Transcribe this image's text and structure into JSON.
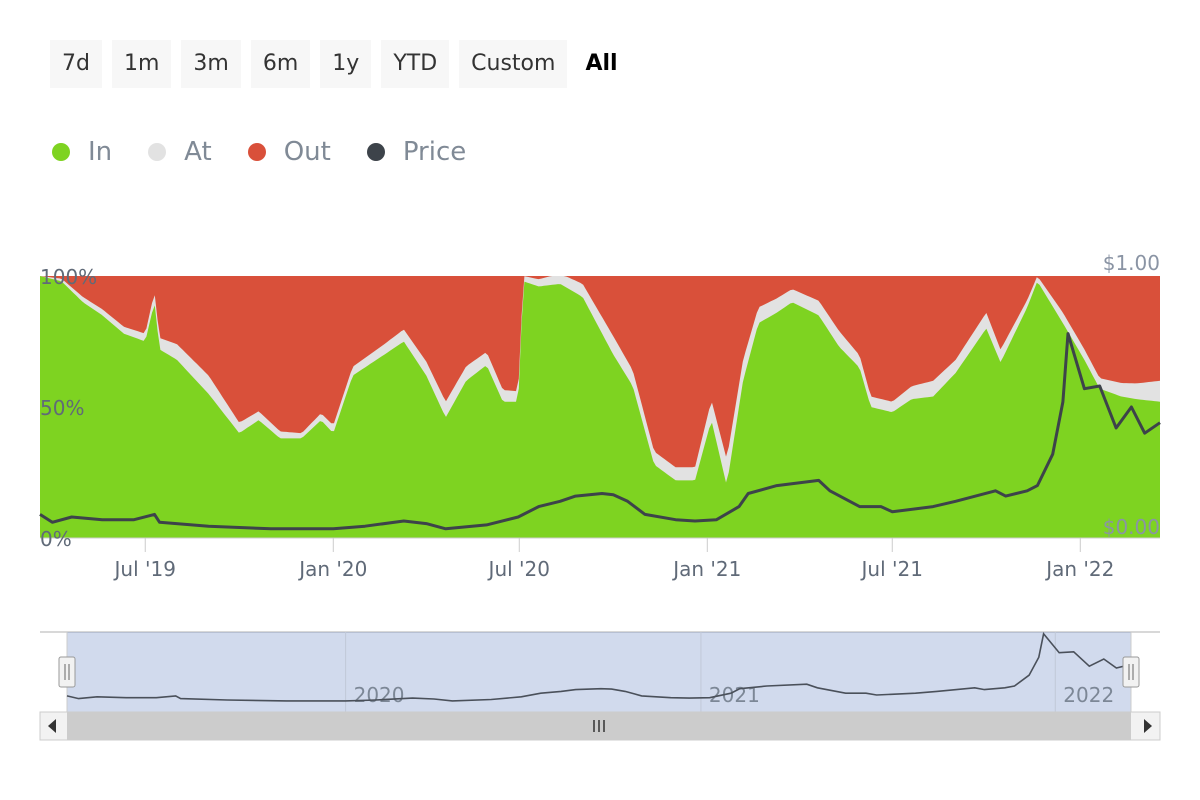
{
  "range_buttons": [
    {
      "label": "7d",
      "selected": false
    },
    {
      "label": "1m",
      "selected": false
    },
    {
      "label": "3m",
      "selected": false
    },
    {
      "label": "6m",
      "selected": false
    },
    {
      "label": "1y",
      "selected": false
    },
    {
      "label": "YTD",
      "selected": false
    },
    {
      "label": "Custom",
      "selected": false
    },
    {
      "label": "All",
      "selected": true
    }
  ],
  "legend": [
    {
      "name": "In",
      "color": "#7ed321"
    },
    {
      "name": "At",
      "color": "#e2e2e2"
    },
    {
      "name": "Out",
      "color": "#d9503a"
    },
    {
      "name": "Price",
      "color": "#3d434a"
    }
  ],
  "chart_data": {
    "type": "area",
    "stacked_percent": true,
    "x_start": "2019-03-20",
    "x_end": "2022-03-20",
    "x_ticks": [
      {
        "date": "2019-07-01",
        "label": "Jul '19"
      },
      {
        "date": "2020-01-01",
        "label": "Jan '20"
      },
      {
        "date": "2020-07-01",
        "label": "Jul '20"
      },
      {
        "date": "2021-01-01",
        "label": "Jan '21"
      },
      {
        "date": "2021-07-01",
        "label": "Jul '21"
      },
      {
        "date": "2022-01-01",
        "label": "Jan '22"
      }
    ],
    "y_left": {
      "ticks": [
        "0%",
        "50%",
        "100%"
      ],
      "range": [
        0,
        100
      ]
    },
    "y_right": {
      "ticks": [
        "$0.00",
        "$1.00"
      ],
      "range": [
        0,
        1
      ]
    },
    "series": [
      {
        "name": "In",
        "color": "#7ed321",
        "points": [
          [
            "2019-03-20",
            100
          ],
          [
            "2019-04-10",
            98
          ],
          [
            "2019-05-01",
            90
          ],
          [
            "2019-05-20",
            85
          ],
          [
            "2019-06-10",
            78
          ],
          [
            "2019-07-01",
            75
          ],
          [
            "2019-07-10",
            90
          ],
          [
            "2019-07-15",
            72
          ],
          [
            "2019-08-01",
            68
          ],
          [
            "2019-09-01",
            55
          ],
          [
            "2019-10-01",
            40
          ],
          [
            "2019-10-20",
            45
          ],
          [
            "2019-11-10",
            38
          ],
          [
            "2019-12-01",
            38
          ],
          [
            "2019-12-20",
            45
          ],
          [
            "2020-01-01",
            40
          ],
          [
            "2020-01-20",
            62
          ],
          [
            "2020-02-20",
            70
          ],
          [
            "2020-03-10",
            75
          ],
          [
            "2020-04-01",
            62
          ],
          [
            "2020-04-20",
            46
          ],
          [
            "2020-05-10",
            60
          ],
          [
            "2020-05-30",
            66
          ],
          [
            "2020-06-15",
            52
          ],
          [
            "2020-06-30",
            52
          ],
          [
            "2020-07-05",
            98
          ],
          [
            "2020-07-20",
            96
          ],
          [
            "2020-08-10",
            97
          ],
          [
            "2020-09-01",
            92
          ],
          [
            "2020-10-01",
            70
          ],
          [
            "2020-10-20",
            58
          ],
          [
            "2020-11-10",
            28
          ],
          [
            "2020-12-01",
            22
          ],
          [
            "2020-12-20",
            22
          ],
          [
            "2021-01-05",
            45
          ],
          [
            "2021-01-20",
            20
          ],
          [
            "2021-02-05",
            60
          ],
          [
            "2021-02-20",
            82
          ],
          [
            "2021-03-10",
            86
          ],
          [
            "2021-03-25",
            90
          ],
          [
            "2021-04-20",
            85
          ],
          [
            "2021-05-10",
            73
          ],
          [
            "2021-05-30",
            65
          ],
          [
            "2021-06-10",
            50
          ],
          [
            "2021-07-01",
            48
          ],
          [
            "2021-07-20",
            53
          ],
          [
            "2021-08-10",
            54
          ],
          [
            "2021-09-01",
            63
          ],
          [
            "2021-10-01",
            80
          ],
          [
            "2021-10-15",
            67
          ],
          [
            "2021-11-10",
            88
          ],
          [
            "2021-11-20",
            98
          ],
          [
            "2021-12-15",
            82
          ],
          [
            "2022-01-05",
            68
          ],
          [
            "2022-01-20",
            57
          ],
          [
            "2022-02-10",
            54
          ],
          [
            "2022-02-25",
            53
          ],
          [
            "2022-03-20",
            52
          ]
        ]
      },
      {
        "name": "At",
        "color": "#e2e2e2",
        "points": [
          [
            "2019-03-20",
            0
          ],
          [
            "2019-05-01",
            2
          ],
          [
            "2019-07-01",
            3
          ],
          [
            "2019-08-01",
            6
          ],
          [
            "2019-09-01",
            7
          ],
          [
            "2019-10-01",
            4
          ],
          [
            "2019-12-01",
            2
          ],
          [
            "2020-01-01",
            3
          ],
          [
            "2020-02-20",
            4
          ],
          [
            "2020-04-20",
            6
          ],
          [
            "2020-05-30",
            5
          ],
          [
            "2020-06-30",
            4
          ],
          [
            "2020-07-05",
            2
          ],
          [
            "2020-09-01",
            5
          ],
          [
            "2020-10-01",
            7
          ],
          [
            "2020-11-10",
            5
          ],
          [
            "2020-12-20",
            5
          ],
          [
            "2021-01-20",
            10
          ],
          [
            "2021-02-20",
            6
          ],
          [
            "2021-03-25",
            5
          ],
          [
            "2021-05-10",
            6
          ],
          [
            "2021-06-10",
            4
          ],
          [
            "2021-07-01",
            4
          ],
          [
            "2021-08-10",
            6
          ],
          [
            "2021-09-01",
            5
          ],
          [
            "2021-10-01",
            6
          ],
          [
            "2021-11-20",
            2
          ],
          [
            "2021-12-15",
            4
          ],
          [
            "2022-01-20",
            4
          ],
          [
            "2022-02-25",
            6
          ],
          [
            "2022-03-20",
            8
          ]
        ]
      },
      {
        "name": "Out",
        "color": "#d9503a",
        "stack_remainder": true
      },
      {
        "name": "Price",
        "color": "#3d434a",
        "axis": "right",
        "points": [
          [
            "2019-03-20",
            0.09
          ],
          [
            "2019-04-01",
            0.06
          ],
          [
            "2019-04-20",
            0.08
          ],
          [
            "2019-05-20",
            0.07
          ],
          [
            "2019-06-20",
            0.07
          ],
          [
            "2019-07-10",
            0.09
          ],
          [
            "2019-07-15",
            0.06
          ],
          [
            "2019-09-01",
            0.045
          ],
          [
            "2019-11-01",
            0.035
          ],
          [
            "2020-01-01",
            0.035
          ],
          [
            "2020-02-01",
            0.045
          ],
          [
            "2020-03-10",
            0.065
          ],
          [
            "2020-04-01",
            0.055
          ],
          [
            "2020-04-20",
            0.035
          ],
          [
            "2020-05-30",
            0.05
          ],
          [
            "2020-06-30",
            0.08
          ],
          [
            "2020-07-20",
            0.12
          ],
          [
            "2020-08-10",
            0.14
          ],
          [
            "2020-08-25",
            0.16
          ],
          [
            "2020-09-20",
            0.17
          ],
          [
            "2020-10-01",
            0.165
          ],
          [
            "2020-10-15",
            0.14
          ],
          [
            "2020-11-01",
            0.09
          ],
          [
            "2020-12-01",
            0.07
          ],
          [
            "2020-12-20",
            0.065
          ],
          [
            "2021-01-10",
            0.07
          ],
          [
            "2021-02-01",
            0.12
          ],
          [
            "2021-02-10",
            0.17
          ],
          [
            "2021-03-10",
            0.2
          ],
          [
            "2021-04-20",
            0.22
          ],
          [
            "2021-05-01",
            0.18
          ],
          [
            "2021-05-30",
            0.12
          ],
          [
            "2021-06-20",
            0.12
          ],
          [
            "2021-07-01",
            0.1
          ],
          [
            "2021-08-10",
            0.12
          ],
          [
            "2021-09-01",
            0.14
          ],
          [
            "2021-10-10",
            0.18
          ],
          [
            "2021-10-20",
            0.16
          ],
          [
            "2021-11-10",
            0.18
          ],
          [
            "2021-11-20",
            0.2
          ],
          [
            "2021-12-05",
            0.32
          ],
          [
            "2021-12-15",
            0.52
          ],
          [
            "2021-12-20",
            0.78
          ],
          [
            "2022-01-05",
            0.57
          ],
          [
            "2022-01-20",
            0.58
          ],
          [
            "2022-02-05",
            0.42
          ],
          [
            "2022-02-20",
            0.5
          ],
          [
            "2022-03-05",
            0.4
          ],
          [
            "2022-03-20",
            0.44
          ]
        ]
      }
    ],
    "navigator": {
      "labels": [
        "2020",
        "2021",
        "2022"
      ]
    }
  }
}
